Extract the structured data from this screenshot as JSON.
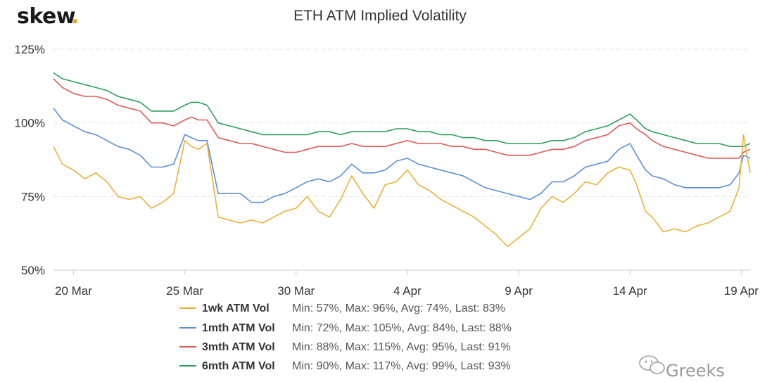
{
  "brand": {
    "logo_text": "skew",
    "logo_dot": "."
  },
  "watermark": {
    "text": "Greeks",
    "icon": "wechat-icon"
  },
  "colors": {
    "1wk": "#e8b23a",
    "1mth": "#5b8fd6",
    "3mth": "#e05a57",
    "6mth": "#2e9e5e"
  },
  "chart_data": {
    "type": "line",
    "title": "ETH ATM Implied Volatility",
    "xlabel": "",
    "ylabel": "",
    "ylim": [
      50,
      125
    ],
    "yticks": [
      "50%",
      "75%",
      "100%",
      "125%"
    ],
    "ytick_values": [
      50,
      75,
      100,
      125
    ],
    "grid": true,
    "legend_position": "bottom",
    "x_tick_labels": [
      "20 Mar",
      "25 Mar",
      "30 Mar",
      "4 Apr",
      "9 Apr",
      "14 Apr",
      "19 Apr"
    ],
    "x_tick_days": [
      0,
      5,
      10,
      15,
      20,
      25,
      30
    ],
    "x_day_range": [
      -0.9,
      30.4
    ],
    "x_start_date": "2020-03-20",
    "series": [
      {
        "name": "1wk ATM Vol",
        "key": "1wk",
        "stats": "Min: 57%, Max: 96%, Avg: 74%, Last: 83%",
        "x": [
          -0.9,
          -0.5,
          0,
          0.5,
          1,
          1.5,
          2,
          2.5,
          3,
          3.5,
          4,
          4.5,
          5,
          5.3,
          5.6,
          6,
          6.5,
          7,
          7.5,
          8,
          8.5,
          9,
          9.5,
          10,
          10.5,
          11,
          11.5,
          12,
          12.5,
          13,
          13.5,
          14,
          14.5,
          15,
          15.5,
          16,
          16.5,
          17,
          17.5,
          18,
          18.5,
          19,
          19.5,
          20,
          20.5,
          21,
          21.5,
          22,
          22.5,
          23,
          23.5,
          24,
          24.5,
          25,
          25.3,
          25.7,
          26,
          26.5,
          27,
          27.5,
          28,
          28.5,
          29,
          29.5,
          29.9,
          30.1,
          30.4
        ],
        "y": [
          92,
          86,
          84,
          81,
          83,
          80,
          75,
          74,
          75,
          71,
          73,
          76,
          94,
          92,
          91,
          93,
          68,
          67,
          66,
          67,
          66,
          68,
          70,
          71,
          75,
          70,
          68,
          74,
          82,
          76,
          71,
          79,
          80,
          84,
          79,
          77,
          74,
          72,
          70,
          68,
          65,
          62,
          58,
          61,
          64,
          71,
          75,
          73,
          76,
          80,
          79,
          83,
          85,
          84,
          79,
          70,
          68,
          63,
          64,
          63,
          65,
          66,
          68,
          70,
          78,
          96,
          83
        ]
      },
      {
        "name": "1mth ATM Vol",
        "key": "1mth",
        "stats": "Min: 72%, Max: 105%, Avg: 84%, Last: 88%",
        "x": [
          -0.9,
          -0.5,
          0,
          0.5,
          1,
          1.5,
          2,
          2.5,
          3,
          3.5,
          4,
          4.5,
          5,
          5.3,
          5.6,
          6,
          6.5,
          7,
          7.5,
          8,
          8.5,
          9,
          9.5,
          10,
          10.5,
          11,
          11.5,
          12,
          12.5,
          13,
          13.5,
          14,
          14.5,
          15,
          15.5,
          16,
          16.5,
          17,
          17.5,
          18,
          18.5,
          19,
          19.5,
          20,
          20.5,
          21,
          21.5,
          22,
          22.5,
          23,
          23.5,
          24,
          24.5,
          25,
          25.3,
          25.7,
          26,
          26.5,
          27,
          27.5,
          28,
          28.5,
          29,
          29.5,
          29.9,
          30.1,
          30.4
        ],
        "y": [
          105,
          101,
          99,
          97,
          96,
          94,
          92,
          91,
          89,
          85,
          85,
          86,
          96,
          95,
          94,
          94,
          76,
          76,
          76,
          73,
          73,
          75,
          76,
          78,
          80,
          81,
          80,
          82,
          86,
          83,
          83,
          84,
          87,
          88,
          86,
          85,
          84,
          83,
          82,
          80,
          78,
          77,
          76,
          75,
          74,
          76,
          80,
          80,
          82,
          85,
          86,
          87,
          91,
          93,
          89,
          84,
          82,
          81,
          79,
          78,
          78,
          78,
          78,
          79,
          83,
          89,
          88
        ]
      },
      {
        "name": "3mth ATM Vol",
        "key": "3mth",
        "stats": "Min: 88%, Max: 115%, Avg: 95%, Last: 91%",
        "x": [
          -0.9,
          -0.5,
          0,
          0.5,
          1,
          1.5,
          2,
          2.5,
          3,
          3.5,
          4,
          4.5,
          5,
          5.3,
          5.6,
          6,
          6.5,
          7,
          7.5,
          8,
          8.5,
          9,
          9.5,
          10,
          10.5,
          11,
          11.5,
          12,
          12.5,
          13,
          13.5,
          14,
          14.5,
          15,
          15.5,
          16,
          16.5,
          17,
          17.5,
          18,
          18.5,
          19,
          19.5,
          20,
          20.5,
          21,
          21.5,
          22,
          22.5,
          23,
          23.5,
          24,
          24.5,
          25,
          25.3,
          25.7,
          26,
          26.5,
          27,
          27.5,
          28,
          28.5,
          29,
          29.5,
          29.9,
          30.1,
          30.4
        ],
        "y": [
          115,
          112,
          110,
          109,
          109,
          108,
          106,
          105,
          104,
          100,
          100,
          99,
          101,
          102,
          101,
          101,
          95,
          94,
          93,
          93,
          92,
          91,
          90,
          90,
          91,
          92,
          92,
          92,
          93,
          92,
          92,
          92,
          93,
          94,
          93,
          93,
          93,
          92,
          92,
          91,
          91,
          90,
          89,
          89,
          89,
          90,
          91,
          91,
          92,
          94,
          95,
          96,
          99,
          100,
          98,
          96,
          94,
          92,
          91,
          90,
          89,
          88,
          88,
          88,
          88,
          90,
          91
        ]
      },
      {
        "name": "6mth ATM Vol",
        "key": "6mth",
        "stats": "Min: 90%, Max: 117%, Avg: 99%, Last: 93%",
        "x": [
          -0.9,
          -0.5,
          0,
          0.5,
          1,
          1.5,
          2,
          2.5,
          3,
          3.5,
          4,
          4.5,
          5,
          5.3,
          5.6,
          6,
          6.5,
          7,
          7.5,
          8,
          8.5,
          9,
          9.5,
          10,
          10.5,
          11,
          11.5,
          12,
          12.5,
          13,
          13.5,
          14,
          14.5,
          15,
          15.5,
          16,
          16.5,
          17,
          17.5,
          18,
          18.5,
          19,
          19.5,
          20,
          20.5,
          21,
          21.5,
          22,
          22.5,
          23,
          23.5,
          24,
          24.5,
          25,
          25.3,
          25.7,
          26,
          26.5,
          27,
          27.5,
          28,
          28.5,
          29,
          29.5,
          29.9,
          30.1,
          30.4
        ],
        "y": [
          117,
          115,
          114,
          113,
          112,
          111,
          109,
          108,
          107,
          104,
          104,
          104,
          106,
          107,
          107,
          106,
          100,
          99,
          98,
          97,
          96,
          96,
          96,
          96,
          96,
          97,
          97,
          96,
          97,
          97,
          97,
          97,
          98,
          98,
          97,
          97,
          96,
          96,
          95,
          95,
          94,
          94,
          93,
          93,
          93,
          93,
          94,
          94,
          95,
          97,
          98,
          99,
          101,
          103,
          101,
          98,
          97,
          96,
          95,
          94,
          93,
          93,
          93,
          92,
          92,
          92,
          93
        ]
      }
    ]
  }
}
